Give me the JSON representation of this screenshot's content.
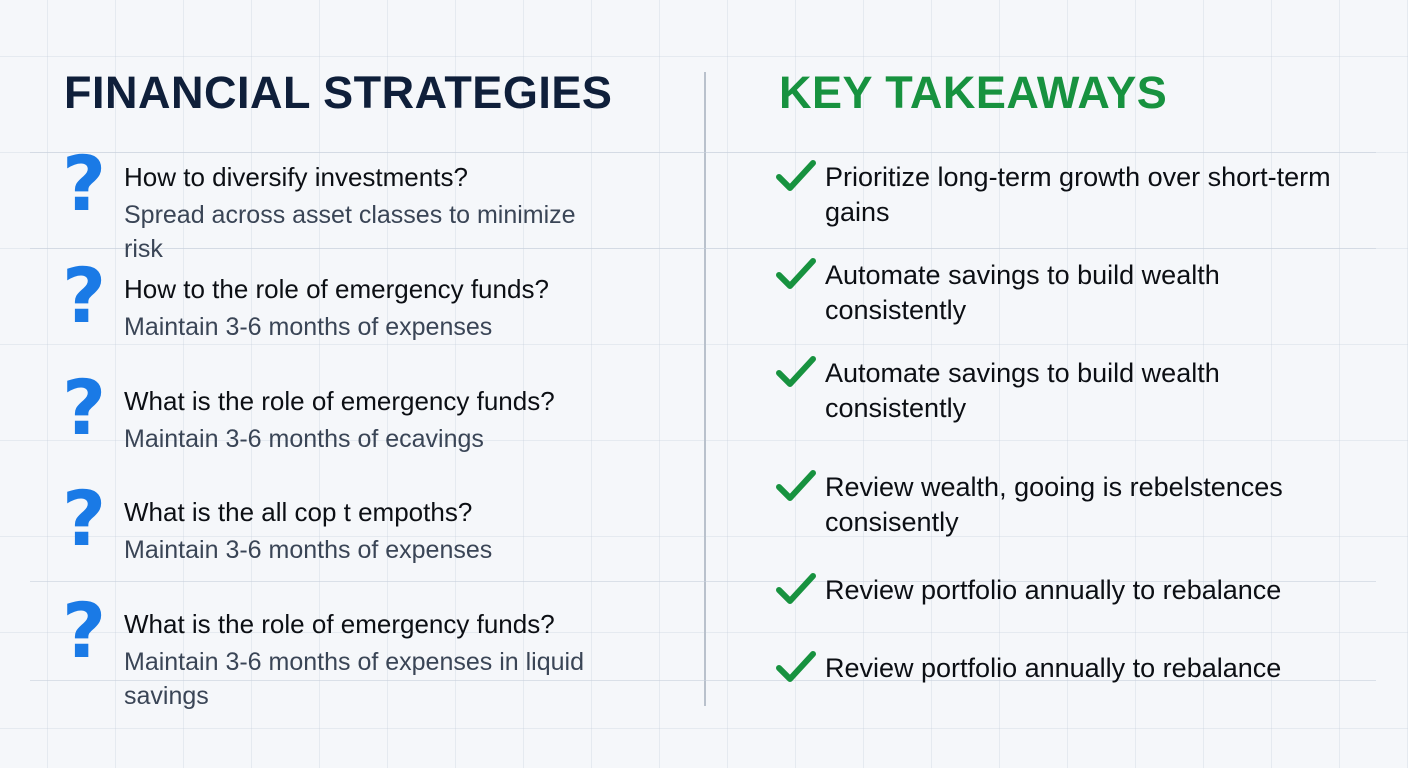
{
  "left": {
    "title": "FINANCIAL STRATEGIES",
    "icon": "question-mark-icon",
    "icon_color": "#1a7ae6",
    "items": [
      {
        "question": "How to diversify investments?",
        "answer": "Spread across asset classes to minimize risk"
      },
      {
        "question": "How to the role of emergency funds?",
        "answer": "Maintain 3-6 months of expenses"
      },
      {
        "question": "What is the role of emergency funds?",
        "answer": "Maintain 3-6 months of ecavings"
      },
      {
        "question": "What is the all cop t empoths?",
        "answer": "Maintain 3-6 months of expenses"
      },
      {
        "question": "What is the role of emergency funds?",
        "answer": "Maintain 3-6 months of expenses in liquid savings"
      }
    ]
  },
  "right": {
    "title": "KEY TAKEAWAYS",
    "title_color": "#17923f",
    "icon": "checkmark-icon",
    "items": [
      {
        "text": "Prioritize long-term growth over short-term gains"
      },
      {
        "text": "Automate savings to build wealth consistently"
      },
      {
        "text": "Automate savings to build wealth consistently"
      },
      {
        "text": "Review wealth, gooing is rebelstences consisently"
      },
      {
        "text": "Review portfolio annually to rebalance"
      },
      {
        "text": "Review portfolio annually to rebalance"
      }
    ]
  }
}
